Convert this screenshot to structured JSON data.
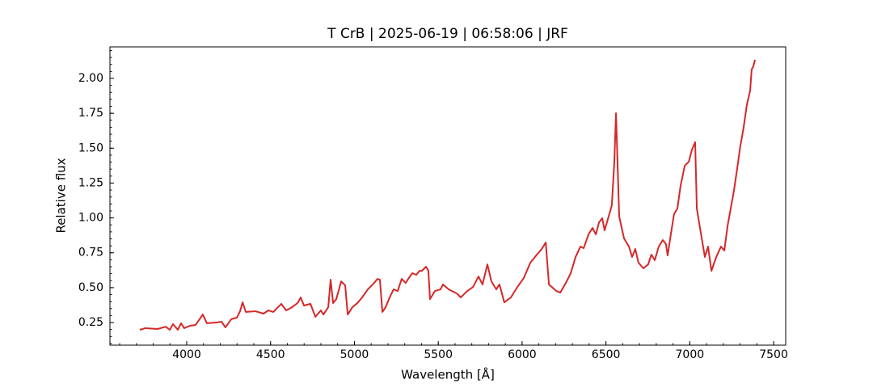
{
  "chart_data": {
    "type": "line",
    "title": "T CrB | 2025-06-19 | 06:58:06 | JRF",
    "x_label": "Wavelength [Å]",
    "y_label": "Relative flux",
    "xlim": [
      3542,
      7572
    ],
    "ylim": [
      0.088,
      2.226
    ],
    "xticks": [
      4000,
      4500,
      5000,
      5500,
      6000,
      6500,
      7000,
      7500
    ],
    "yticks": [
      0.25,
      {
        "value": 0.5,
        "label": "0.50"
      },
      0.75,
      {
        "value": 1.0,
        "label": "1.00"
      },
      1.25,
      {
        "value": 1.5,
        "label": "1.50"
      },
      1.75,
      {
        "value": 2.0,
        "label": "2.00"
      }
    ],
    "minor_ticks": true,
    "grid": false,
    "x": [
      3720,
      3754,
      3826,
      3875,
      3899,
      3918,
      3947,
      3966,
      3985,
      4019,
      4053,
      4096,
      4120,
      4178,
      4207,
      4231,
      4265,
      4299,
      4318,
      4333,
      4352,
      4410,
      4458,
      4487,
      4516,
      4564,
      4593,
      4622,
      4661,
      4680,
      4699,
      4738,
      4767,
      4800,
      4815,
      4844,
      4858,
      4873,
      4892,
      4921,
      4945,
      4960,
      4988,
      5017,
      5046,
      5080,
      5109,
      5138,
      5152,
      5167,
      5186,
      5210,
      5234,
      5258,
      5282,
      5306,
      5321,
      5345,
      5369,
      5388,
      5403,
      5427,
      5441,
      5451,
      5480,
      5514,
      5528,
      5562,
      5610,
      5634,
      5673,
      5707,
      5740,
      5764,
      5793,
      5817,
      5846,
      5865,
      5894,
      5933,
      5972,
      6010,
      6049,
      6088,
      6117,
      6141,
      6160,
      6204,
      6228,
      6261,
      6290,
      6319,
      6348,
      6367,
      6396,
      6420,
      6440,
      6459,
      6478,
      6492,
      6516,
      6535,
      6550,
      6560,
      6569,
      6579,
      6608,
      6637,
      6656,
      6675,
      6694,
      6723,
      6752,
      6771,
      6791,
      6815,
      6839,
      6858,
      6868,
      6887,
      6906,
      6926,
      6945,
      6970,
      6994,
      7013,
      7032,
      7042,
      7061,
      7090,
      7109,
      7129,
      7158,
      7186,
      7206,
      7225,
      7244,
      7264,
      7283,
      7302,
      7321,
      7340,
      7360,
      7369,
      7379,
      7389
    ],
    "series": [
      {
        "color": "#d62728",
        "values": [
          0.198,
          0.21,
          0.204,
          0.22,
          0.198,
          0.239,
          0.198,
          0.245,
          0.21,
          0.227,
          0.233,
          0.308,
          0.245,
          0.25,
          0.256,
          0.216,
          0.274,
          0.285,
          0.331,
          0.395,
          0.326,
          0.331,
          0.314,
          0.337,
          0.326,
          0.384,
          0.337,
          0.355,
          0.39,
          0.43,
          0.372,
          0.384,
          0.291,
          0.337,
          0.308,
          0.36,
          0.557,
          0.389,
          0.418,
          0.545,
          0.517,
          0.308,
          0.36,
          0.389,
          0.43,
          0.488,
          0.523,
          0.563,
          0.557,
          0.326,
          0.36,
          0.43,
          0.488,
          0.476,
          0.563,
          0.534,
          0.563,
          0.604,
          0.592,
          0.62,
          0.621,
          0.65,
          0.621,
          0.418,
          0.476,
          0.488,
          0.523,
          0.488,
          0.459,
          0.43,
          0.476,
          0.505,
          0.58,
          0.523,
          0.667,
          0.545,
          0.488,
          0.523,
          0.395,
          0.43,
          0.505,
          0.569,
          0.679,
          0.737,
          0.777,
          0.824,
          0.523,
          0.476,
          0.465,
          0.534,
          0.604,
          0.72,
          0.795,
          0.783,
          0.882,
          0.928,
          0.882,
          0.969,
          0.998,
          0.911,
          1.01,
          1.09,
          1.4,
          1.75,
          1.4,
          1.01,
          0.853,
          0.795,
          0.72,
          0.777,
          0.679,
          0.639,
          0.667,
          0.737,
          0.697,
          0.795,
          0.841,
          0.812,
          0.731,
          0.882,
          1.027,
          1.067,
          1.23,
          1.374,
          1.403,
          1.49,
          1.543,
          1.067,
          0.928,
          0.72,
          0.795,
          0.621,
          0.72,
          0.795,
          0.766,
          0.94,
          1.067,
          1.2,
          1.357,
          1.519,
          1.647,
          1.809,
          1.913,
          2.064,
          2.087,
          2.133
        ]
      }
    ]
  }
}
